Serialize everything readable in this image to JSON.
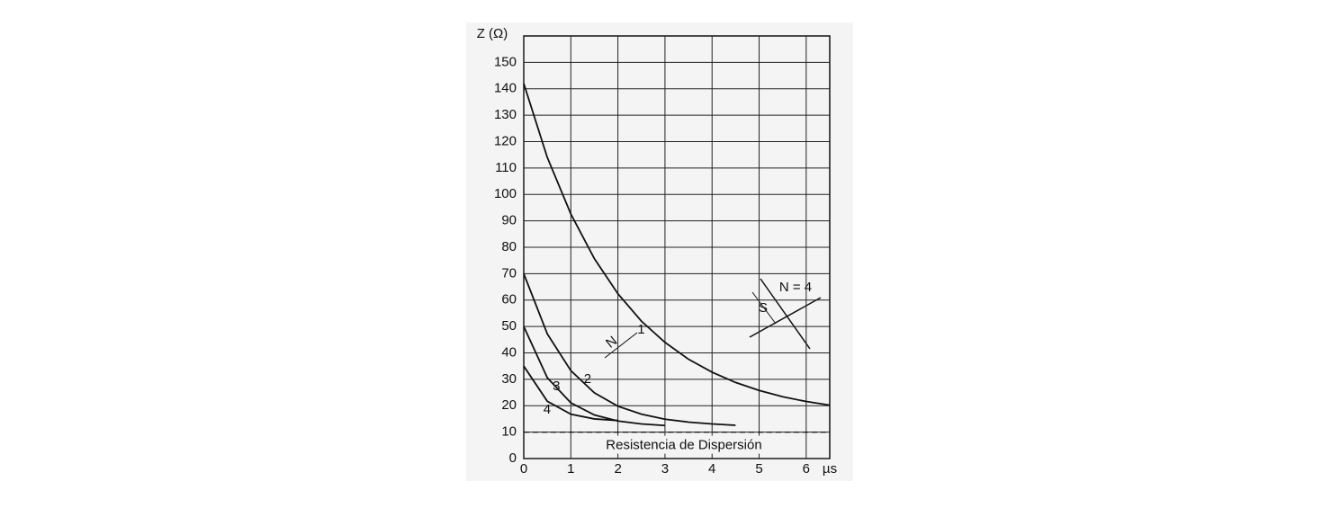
{
  "chart_data": {
    "type": "line",
    "y_label": "Z (Ω)",
    "x_label": "µs",
    "x": [
      0,
      0.5,
      1,
      1.5,
      2,
      2.5,
      3,
      3.5,
      4,
      4.5,
      5,
      5.5,
      6,
      6.5
    ],
    "series": [
      {
        "name": "1",
        "color": "#111111",
        "values": [
          142,
          114,
          92.6,
          75.7,
          62.4,
          52,
          44,
          37.6,
          32.7,
          28.8,
          25.8,
          23.4,
          21.6,
          20.2
        ]
      },
      {
        "name": "2",
        "color": "#111111",
        "values": [
          70,
          47.2,
          33.3,
          24.9,
          19.8,
          16.8,
          14.9,
          13.8,
          13.1,
          12.6,
          null,
          null,
          null,
          null
        ]
      },
      {
        "name": "3",
        "color": "#111111",
        "values": [
          50,
          30.6,
          21.1,
          16.5,
          14.2,
          13.1,
          12.5,
          null,
          null,
          null,
          null,
          null,
          null,
          null
        ]
      },
      {
        "name": "4",
        "color": "#111111",
        "values": [
          35,
          21.7,
          16.8,
          15,
          14.4,
          null,
          null,
          null,
          null,
          null,
          null,
          null,
          null,
          null
        ]
      }
    ],
    "reference_line": {
      "label": "Resistencia de Dispersión",
      "value": 10
    },
    "inset_labels": [
      "N = 4",
      "S",
      "N"
    ],
    "xlim": [
      0,
      6.5
    ],
    "ylim": [
      0,
      160
    ],
    "xticks": [
      0,
      1,
      2,
      3,
      4,
      5,
      6
    ],
    "yticks": [
      0,
      10,
      20,
      30,
      40,
      50,
      60,
      70,
      80,
      90,
      100,
      110,
      120,
      130,
      140,
      150
    ],
    "grid": true
  }
}
